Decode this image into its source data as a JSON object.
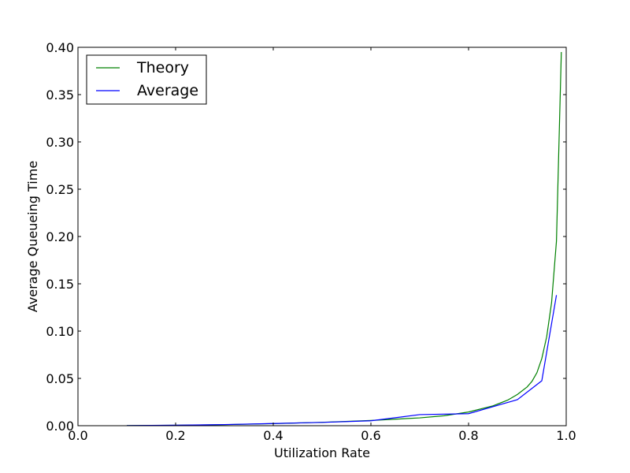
{
  "chart_data": {
    "type": "line",
    "title": "",
    "xlabel": "Utilization Rate",
    "ylabel": "Average Queueing Time",
    "xlim": [
      0.0,
      1.0
    ],
    "ylim": [
      0.0,
      0.4
    ],
    "xticks": [
      "0.0",
      "0.2",
      "0.4",
      "0.6",
      "0.8",
      "1.0"
    ],
    "yticks": [
      "0.00",
      "0.05",
      "0.10",
      "0.15",
      "0.20",
      "0.25",
      "0.30",
      "0.35",
      "0.40"
    ],
    "grid": false,
    "legend_position": "top-left",
    "series": [
      {
        "name": "Theory",
        "color": "#008000",
        "x": [
          0.1,
          0.2,
          0.3,
          0.4,
          0.5,
          0.6,
          0.7,
          0.75,
          0.8,
          0.85,
          0.88,
          0.9,
          0.92,
          0.93,
          0.94,
          0.95,
          0.96,
          0.97,
          0.98,
          0.99
        ],
        "y": [
          0.0001,
          0.0004,
          0.0011,
          0.0022,
          0.0036,
          0.0055,
          0.0083,
          0.0105,
          0.0145,
          0.021,
          0.027,
          0.033,
          0.041,
          0.047,
          0.056,
          0.071,
          0.094,
          0.13,
          0.195,
          0.395
        ]
      },
      {
        "name": "Average",
        "color": "#0000ff",
        "x": [
          0.1,
          0.2,
          0.3,
          0.4,
          0.5,
          0.6,
          0.7,
          0.8,
          0.9,
          0.95,
          0.98
        ],
        "y": [
          0.0001,
          0.0005,
          0.0012,
          0.0023,
          0.0035,
          0.0052,
          0.0117,
          0.0127,
          0.0275,
          0.0475,
          0.138
        ]
      }
    ]
  }
}
